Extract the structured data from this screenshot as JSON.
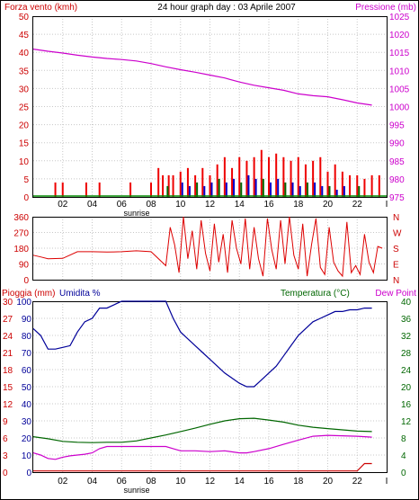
{
  "chart_data": [
    {
      "type": "bar",
      "title": "24 hour graph day : 03 Aprile 2007",
      "left_label": "Forza vento (kmh)",
      "right_label": "Pressione (mb)",
      "x_ticks": [
        "02",
        "04",
        "06",
        "08",
        "10",
        "12",
        "14",
        "16",
        "18",
        "20",
        "22",
        "I"
      ],
      "sunrise_label": "sunrise",
      "y_left_ticks": [
        "50",
        "45",
        "40",
        "35",
        "30",
        "25",
        "20",
        "15",
        "10",
        "5",
        "0"
      ],
      "y_left_range": [
        0,
        50
      ],
      "y_right_ticks": [
        "1025",
        "1020",
        "1015",
        "1010",
        "1005",
        "1000",
        "995",
        "990",
        "985",
        "980",
        "975"
      ],
      "y_right_range": [
        975,
        1025
      ],
      "pressure_series": {
        "x": [
          0.0,
          1.0,
          2.0,
          3.0,
          4.0,
          5.0,
          6.0,
          7.0,
          8.0,
          9.0,
          10.0,
          11.0,
          12.0,
          13.0,
          14.0,
          15.0,
          16.0,
          17.0,
          18.0,
          19.0,
          20.0,
          21.0,
          22.0,
          23.0
        ],
        "values": [
          1015.9,
          1015.3,
          1014.8,
          1014.2,
          1013.7,
          1013.3,
          1013.0,
          1012.6,
          1011.9,
          1011.0,
          1010.2,
          1009.5,
          1008.7,
          1007.9,
          1006.8,
          1005.9,
          1005.2,
          1004.5,
          1003.5,
          1003.0,
          1002.7,
          1001.9,
          1001.0,
          1000.4
        ]
      },
      "wind_max_series": {
        "x": [
          1.5,
          2.0,
          3.6,
          4.5,
          6.6,
          8.0,
          8.5,
          8.8,
          9.2,
          9.5,
          10.0,
          10.5,
          11.0,
          11.5,
          12.0,
          12.5,
          13.0,
          13.5,
          14.0,
          14.5,
          15.0,
          15.5,
          16.0,
          16.5,
          17.0,
          17.5,
          18.0,
          18.5,
          19.0,
          19.5,
          20.0,
          20.5,
          21.0,
          21.5,
          22.0,
          22.5,
          23.0,
          23.5
        ],
        "values": [
          4,
          4,
          4,
          4,
          4,
          4,
          8,
          6,
          6,
          6,
          7,
          8,
          6,
          8,
          6,
          9,
          11,
          8,
          11,
          10,
          11,
          13,
          11,
          12,
          11,
          10,
          11,
          9,
          10,
          11,
          7,
          9,
          7,
          6,
          6,
          5,
          6,
          6
        ]
      },
      "wind_avg_series": {
        "x": [
          9.0,
          10.0,
          10.5,
          11.0,
          11.5,
          12.0,
          12.5,
          13.0,
          13.5,
          14.0,
          14.5,
          15.0,
          15.5,
          16.0,
          16.5,
          17.0,
          17.5,
          18.0,
          18.5,
          19.0,
          19.5,
          20.0,
          20.5,
          21.0,
          22.0
        ],
        "values": [
          3,
          4,
          3,
          4,
          3,
          4,
          5,
          4,
          5,
          4,
          6,
          5,
          5,
          4,
          5,
          4,
          4,
          3,
          4,
          4,
          3,
          3,
          2,
          3,
          3
        ]
      }
    },
    {
      "type": "line",
      "y_left_ticks": [
        "360",
        "270",
        "180",
        "90",
        "0"
      ],
      "y_left_range": [
        0,
        360
      ],
      "y_right_ticks": [
        "N",
        "W",
        "S",
        "E",
        "N"
      ],
      "direction_series": {
        "x": [
          0.0,
          0.5,
          1.0,
          2.0,
          3.0,
          4.0,
          5.0,
          6.0,
          7.0,
          8.0,
          9.0,
          9.3,
          9.6,
          9.9,
          10.2,
          10.5,
          10.8,
          11.1,
          11.4,
          11.7,
          12.0,
          12.3,
          12.6,
          12.9,
          13.2,
          13.5,
          13.8,
          14.1,
          14.4,
          14.7,
          15.0,
          15.3,
          15.6,
          15.9,
          16.2,
          16.5,
          16.8,
          17.1,
          17.4,
          17.7,
          18.0,
          18.3,
          18.6,
          18.9,
          19.2,
          19.5,
          19.8,
          20.1,
          20.4,
          20.7,
          21.0,
          21.3,
          21.6,
          21.9,
          22.2,
          22.5,
          22.8,
          23.1,
          23.4,
          23.7
        ],
        "values": [
          140,
          130,
          120,
          122,
          160,
          160,
          158,
          160,
          165,
          160,
          80,
          300,
          200,
          40,
          360,
          120,
          280,
          60,
          340,
          150,
          50,
          320,
          100,
          260,
          40,
          340,
          180,
          90,
          350,
          60,
          300,
          120,
          20,
          350,
          170,
          60,
          340,
          90,
          360,
          140,
          60,
          320,
          20,
          200,
          350,
          70,
          30,
          300,
          100,
          50,
          20,
          330,
          40,
          80,
          30,
          260,
          100,
          40,
          190,
          180
        ]
      }
    },
    {
      "type": "line",
      "left_label_rain": "Pioggia (mm)",
      "left_label_hum": "Umidita %",
      "right_label_temp": "Temperatura (°C)",
      "right_label_dew": "Dew Point",
      "x_ticks": [
        "02",
        "04",
        "06",
        "08",
        "10",
        "12",
        "14",
        "16",
        "18",
        "20",
        "22",
        "I"
      ],
      "sunrise_label": "sunrise",
      "y_rain_ticks": [
        "30",
        "27",
        "24",
        "21",
        "18",
        "15",
        "12",
        "9",
        "6",
        "3",
        "0"
      ],
      "y_rain_range": [
        0,
        30
      ],
      "y_hum_ticks": [
        "100",
        "90",
        "80",
        "70",
        "60",
        "50",
        "40",
        "30",
        "20",
        "10",
        "0"
      ],
      "y_hum_range": [
        0,
        100
      ],
      "y_temp_ticks": [
        "40",
        "36",
        "32",
        "28",
        "24",
        "20",
        "16",
        "12",
        "8",
        "4",
        "0"
      ],
      "y_temp_range": [
        0,
        40
      ],
      "humidity_series": {
        "x": [
          0.0,
          0.5,
          1.0,
          1.5,
          2.0,
          2.5,
          3.0,
          3.5,
          4.0,
          4.5,
          5.0,
          5.5,
          6.0,
          7.0,
          8.0,
          9.0,
          9.5,
          10.0,
          10.5,
          11.0,
          11.5,
          12.0,
          12.5,
          13.0,
          13.5,
          14.0,
          14.5,
          15.0,
          15.5,
          16.0,
          16.5,
          17.0,
          17.5,
          18.0,
          18.5,
          19.0,
          19.5,
          20.0,
          20.5,
          21.0,
          21.5,
          22.0,
          22.5,
          23.0
        ],
        "values": [
          84,
          80,
          72,
          72,
          73,
          74,
          82,
          88,
          90,
          96,
          96,
          98,
          100,
          100,
          100,
          100,
          90,
          82,
          78,
          74,
          70,
          66,
          62,
          58,
          55,
          52,
          50,
          50,
          54,
          58,
          62,
          68,
          74,
          80,
          84,
          88,
          90,
          92,
          94,
          94,
          95,
          95,
          96,
          96
        ]
      },
      "rain_series": {
        "x": [
          0.0,
          21.0,
          22.0,
          22.5,
          23.0
        ],
        "values": [
          0.2,
          0.2,
          0.2,
          1.5,
          1.5
        ]
      },
      "temperature_series": {
        "x": [
          0.0,
          1.0,
          2.0,
          3.0,
          4.0,
          5.0,
          6.0,
          7.0,
          8.0,
          9.0,
          10.0,
          11.0,
          12.0,
          13.0,
          14.0,
          15.0,
          16.0,
          17.0,
          18.0,
          19.0,
          20.0,
          21.0,
          22.0,
          23.0
        ],
        "values": [
          8.3,
          7.8,
          7.2,
          7.0,
          6.9,
          7.0,
          7.0,
          7.3,
          8.0,
          8.7,
          9.5,
          10.3,
          11.2,
          12.0,
          12.5,
          12.6,
          12.2,
          11.7,
          11.0,
          10.5,
          10.2,
          9.9,
          9.6,
          9.5
        ]
      },
      "dew_series": {
        "x": [
          0.0,
          0.5,
          1.0,
          1.5,
          2.0,
          2.5,
          3.0,
          3.5,
          4.0,
          4.5,
          5.0,
          9.0,
          9.5,
          10.0,
          11.0,
          12.0,
          13.0,
          14.0,
          14.5,
          15.0,
          16.0,
          17.0,
          18.0,
          19.0,
          20.0,
          21.0,
          22.0,
          23.0
        ],
        "values": [
          4.5,
          4.0,
          3.2,
          3.0,
          3.5,
          3.8,
          4.0,
          4.2,
          4.5,
          5.5,
          6.0,
          6.0,
          5.5,
          5.0,
          5.0,
          4.8,
          5.0,
          4.5,
          4.5,
          4.8,
          5.5,
          6.5,
          7.5,
          8.4,
          8.6,
          8.5,
          8.4,
          8.2
        ]
      }
    }
  ]
}
